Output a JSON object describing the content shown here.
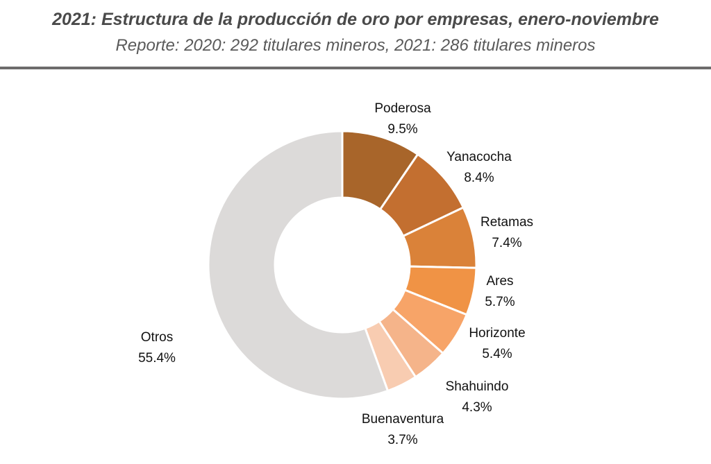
{
  "header": {
    "title": "2021: Estructura de la producción de oro por empresas, enero-noviembre",
    "subtitle": "Reporte: 2020: 292 titulares mineros, 2021: 286 titulares mineros"
  },
  "chart_data": {
    "type": "pie",
    "donut": true,
    "title": "2021: Estructura de la producción de oro por empresas, enero-noviembre",
    "subtitle": "Reporte: 2020: 292 titulares mineros, 2021: 286 titulares mineros",
    "legend": "none",
    "slices": [
      {
        "name": "Poderosa",
        "value": 9.5,
        "label": "9.5%",
        "color": "#a8652a"
      },
      {
        "name": "Yanacocha",
        "value": 8.4,
        "label": "8.4%",
        "color": "#c36f30"
      },
      {
        "name": "Retamas",
        "value": 7.4,
        "label": "7.4%",
        "color": "#da8239"
      },
      {
        "name": "Ares",
        "value": 5.7,
        "label": "5.7%",
        "color": "#f09345"
      },
      {
        "name": "Horizonte",
        "value": 5.4,
        "label": "5.4%",
        "color": "#f7a468"
      },
      {
        "name": "Shahuindo",
        "value": 4.3,
        "label": "4.3%",
        "color": "#f5b48a"
      },
      {
        "name": "Buenaventura",
        "value": 3.7,
        "label": "3.7%",
        "color": "#f8ccb1"
      },
      {
        "name": "Otros",
        "value": 55.4,
        "label": "55.4%",
        "color": "#dcdad9"
      }
    ]
  }
}
